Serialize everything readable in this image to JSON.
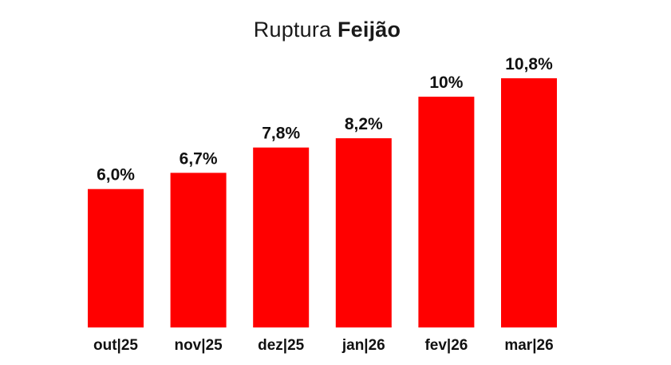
{
  "chart_data": {
    "type": "bar",
    "title": "Ruptura Feijão",
    "title_parts": {
      "regular": "Ruptura",
      "bold": "Feijão"
    },
    "categories": [
      "out|25",
      "nov|25",
      "dez|25",
      "jan|26",
      "fev|26",
      "mar|26"
    ],
    "values": [
      6.0,
      6.7,
      7.8,
      8.2,
      10.0,
      10.8
    ],
    "value_labels": [
      "6,0%",
      "6,7%",
      "7,8%",
      "8,2%",
      "10%",
      "10,8%"
    ],
    "xlabel": "",
    "ylabel": "",
    "ylim": [
      0,
      10.8
    ],
    "grid": false,
    "legend": "none",
    "colors": {
      "bar": "#ff0000",
      "text": "#111111"
    }
  }
}
